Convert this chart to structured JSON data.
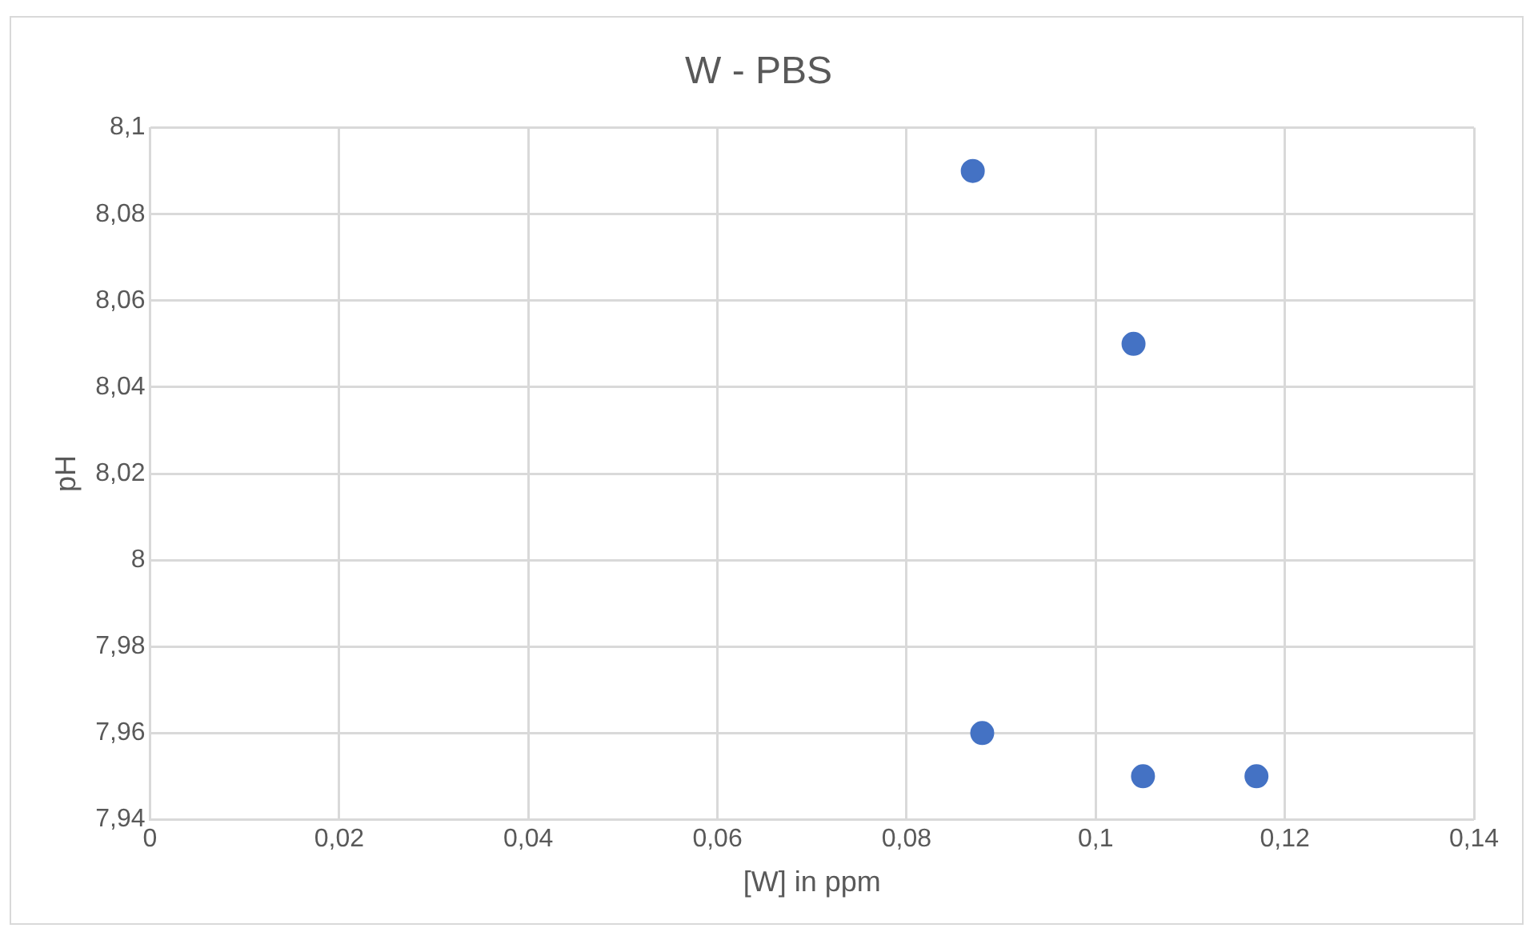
{
  "chart_data": {
    "type": "scatter",
    "title": "W - PBS",
    "xlabel": "[W] in ppm",
    "ylabel": "pH",
    "x": [
      0.087,
      0.104,
      0.088,
      0.105,
      0.117
    ],
    "series": [
      {
        "color": "#4472c4",
        "values": [
          8.09,
          8.05,
          7.96,
          7.95,
          7.95
        ]
      }
    ],
    "xlim": [
      0,
      0.14
    ],
    "ylim": [
      7.94,
      8.1
    ],
    "xticks": [
      0,
      {
        "value": 0.02,
        "label": "0,02"
      },
      {
        "value": 0.04,
        "label": "0,04"
      },
      {
        "value": 0.06,
        "label": "0,06"
      },
      {
        "value": 0.08,
        "label": "0,08"
      },
      {
        "value": 0.1,
        "label": "0,1"
      },
      {
        "value": 0.12,
        "label": "0,12"
      },
      {
        "value": 0.14,
        "label": "0,14"
      }
    ],
    "yticks": [
      {
        "value": 7.94,
        "label": "7,94"
      },
      {
        "value": 7.96,
        "label": "7,96"
      },
      {
        "value": 7.98,
        "label": "7,98"
      },
      8,
      {
        "value": 8.02,
        "label": "8,02"
      },
      {
        "value": 8.04,
        "label": "8,04"
      },
      {
        "value": 8.06,
        "label": "8,06"
      },
      {
        "value": 8.08,
        "label": "8,08"
      },
      {
        "value": 8.1,
        "label": "8,1"
      }
    ],
    "grid": true,
    "marker": "circle",
    "legend": false
  }
}
